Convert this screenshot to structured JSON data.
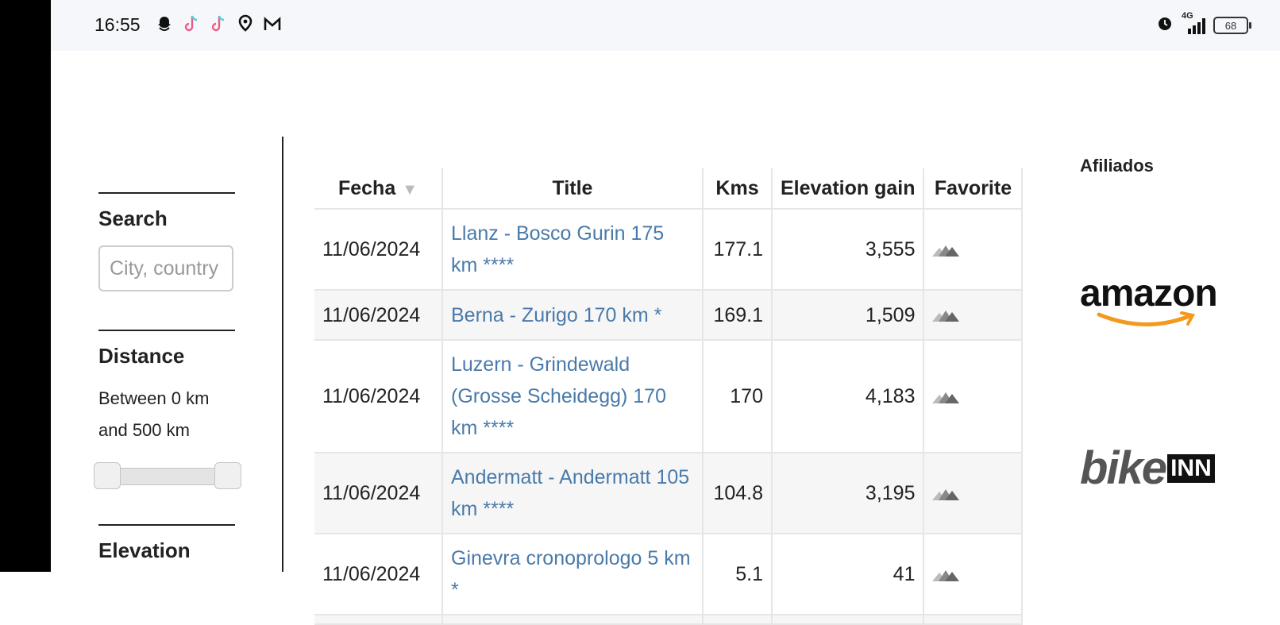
{
  "status_bar": {
    "time": "16:55",
    "notification_icons": [
      "snapchat-icon",
      "tiktok-icon",
      "tiktok-icon",
      "location-pin-icon",
      "gmail-icon"
    ],
    "network": "4G",
    "battery": "68"
  },
  "sidebar": {
    "search_title": "Search",
    "search_placeholder": "City, country",
    "distance_title": "Distance",
    "distance_text": "Between 0 km and 500 km",
    "distance_range": {
      "min": 0,
      "max": 500,
      "unit": "km"
    },
    "next_section_title": "Elevation"
  },
  "table": {
    "headers": {
      "date": "Fecha",
      "title": "Title",
      "kms": "Kms",
      "elevation": "Elevation gain",
      "favorite": "Favorite"
    },
    "rows": [
      {
        "date": "11/06/2024",
        "title": "Llanz - Bosco Gurin 175 km ****",
        "kms": "177.1",
        "elevation": "3,555"
      },
      {
        "date": "11/06/2024",
        "title": "Berna - Zurigo 170 km *",
        "kms": "169.1",
        "elevation": "1,509"
      },
      {
        "date": "11/06/2024",
        "title": "Luzern - Grindewald (Grosse Scheidegg) 170 km ****",
        "kms": "170",
        "elevation": "4,183"
      },
      {
        "date": "11/06/2024",
        "title": "Andermatt - Andermatt 105 km ****",
        "kms": "104.8",
        "elevation": "3,195"
      },
      {
        "date": "11/06/2024",
        "title": "Ginevra cronoprologo 5 km *",
        "kms": "5.1",
        "elevation": "41"
      }
    ]
  },
  "affiliates": {
    "title": "Afiliados",
    "logos": [
      "amazon",
      "bikeINN"
    ]
  },
  "colors": {
    "link": "#4a7aa9",
    "row_alt": "#f6f6f6"
  }
}
